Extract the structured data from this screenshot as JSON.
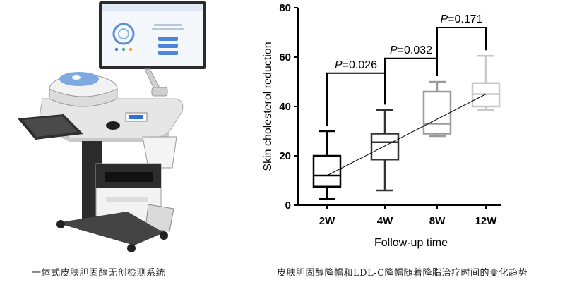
{
  "captions": {
    "left": "一体式皮肤胆固醇无创检测系统",
    "right": "皮肤胆固醇降幅和LDL-C降幅随着降脂治疗时间的变化趋势"
  },
  "chart_data": {
    "type": "box",
    "xlabel": "Follow-up time",
    "ylabel": "Skin cholesterol reduction",
    "ylim": [
      0,
      80
    ],
    "yticks": [
      0,
      20,
      40,
      60,
      80
    ],
    "categories": [
      "2W",
      "4W",
      "8W",
      "12W"
    ],
    "colors": [
      "#000000",
      "#333333",
      "#999999",
      "#c8c8c8"
    ],
    "boxes": [
      {
        "category": "2W",
        "min": 2.5,
        "q1": 7.5,
        "median": 12,
        "q3": 20,
        "max": 30
      },
      {
        "category": "4W",
        "min": 6,
        "q1": 18.5,
        "median": 25.5,
        "q3": 29,
        "max": 38.5
      },
      {
        "category": "8W",
        "min": 28,
        "q1": 29,
        "median": 33,
        "q3": 46,
        "max": 50
      },
      {
        "category": "12W",
        "min": 38.5,
        "q1": 40,
        "median": 45,
        "q3": 49.5,
        "max": 60.5
      }
    ],
    "trend_line": {
      "from": [
        "2W",
        12
      ],
      "to": [
        "12W",
        45
      ]
    },
    "comparisons": [
      {
        "from": "2W",
        "to": "4W",
        "y": 53.5,
        "p_prefix": "P",
        "p_value": "=0.026"
      },
      {
        "from": "4W",
        "to": "8W",
        "y": 59.5,
        "p_prefix": "P",
        "p_value": "=0.032"
      },
      {
        "from": "8W",
        "to": "12W",
        "y": 72,
        "p_prefix": "P",
        "p_value": "=0.171"
      }
    ]
  }
}
